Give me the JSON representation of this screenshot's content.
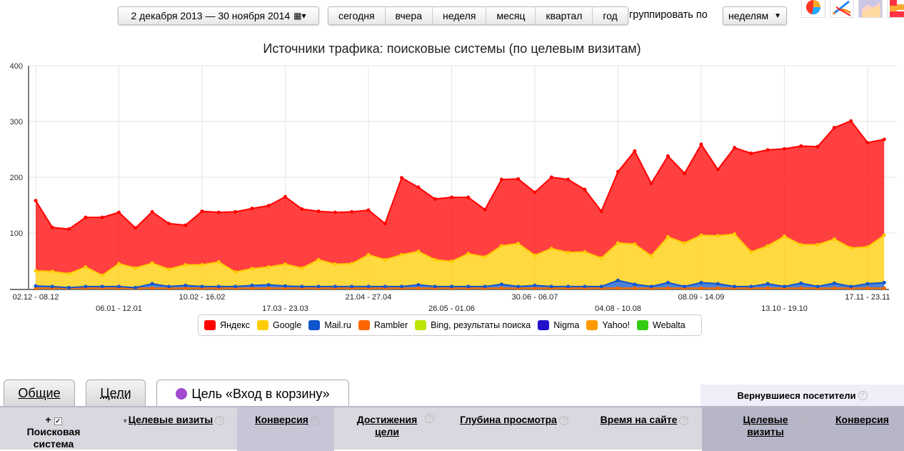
{
  "toolbar": {
    "date_range": "2 декабря 2013 — 30 ноября 2014",
    "periods": [
      "сегодня",
      "вчера",
      "неделя",
      "месяц",
      "квартал",
      "год"
    ],
    "group_label": "группировать по",
    "group_value": "неделям",
    "chart_types": [
      "pie-chart-icon",
      "line-chart-icon",
      "area-chart-icon",
      "bar-chart-icon"
    ],
    "selected_chart_type": "area-chart-icon"
  },
  "chart_data": {
    "type": "area",
    "stacked": true,
    "title": "Источники трафика: поисковые системы (по целевым визитам)",
    "ylim": [
      0,
      400
    ],
    "yticks": [
      100,
      200,
      300,
      400
    ],
    "grid": true,
    "legend": "bottom",
    "x_tick_labels": [
      "02.12 - 08.12",
      "06.01 - 12.01",
      "10.02 - 16.02",
      "17.03 - 23.03",
      "21.04 - 27.04",
      "26.05 - 01.06",
      "30.06 - 06.07",
      "04.08 - 10.08",
      "08.09 - 14.09",
      "13.10 - 19.10",
      "17.11 - 23.11"
    ],
    "x_tick_every_weeks": 5,
    "series": [
      {
        "name": "Яндекс",
        "color": "#ff0000",
        "values": [
          126,
          79,
          80,
          89,
          104,
          92,
          72,
          92,
          82,
          71,
          96,
          89,
          108,
          108,
          110,
          121,
          106,
          87,
          93,
          93,
          80,
          65,
          138,
          115,
          109,
          115,
          101,
          85,
          119,
          116,
          113,
          128,
          131,
          112,
          84,
          128,
          167,
          130,
          145,
          125,
          163,
          119,
          155,
          177,
          172,
          157,
          177,
          176,
          200,
          228,
          187,
          172
        ]
      },
      {
        "name": "Google",
        "color": "#ffcc00",
        "values": [
          27,
          27,
          25,
          35,
          20,
          41,
          35,
          37,
          31,
          37,
          39,
          44,
          26,
          30,
          32,
          39,
          33,
          48,
          40,
          41,
          57,
          48,
          57,
          60,
          48,
          45,
          59,
          53,
          69,
          77,
          54,
          68,
          61,
          62,
          51,
          67,
          72,
          55,
          82,
          78,
          85,
          86,
          94,
          62,
          68,
          90,
          69,
          75,
          79,
          69,
          66,
          85
        ]
      },
      {
        "name": "Mail.ru",
        "color": "#1155cc",
        "values": [
          4,
          3,
          1,
          3,
          3,
          3,
          1,
          8,
          3,
          5,
          3,
          3,
          3,
          5,
          6,
          4,
          3,
          3,
          3,
          3,
          3,
          3,
          3,
          6,
          3,
          3,
          3,
          3,
          7,
          3,
          5,
          3,
          3,
          3,
          3,
          14,
          7,
          3,
          10,
          3,
          10,
          8,
          3,
          3,
          8,
          3,
          9,
          3,
          9,
          3,
          8,
          10
        ]
      },
      {
        "name": "Rambler",
        "color": "#ff6600",
        "values": [
          0,
          0,
          0,
          0,
          0,
          0,
          0,
          0,
          0,
          0,
          0,
          0,
          0,
          0,
          0,
          0,
          0,
          0,
          0,
          0,
          0,
          0,
          0,
          0,
          0,
          0,
          0,
          0,
          0,
          0,
          0,
          0,
          0,
          0,
          0,
          0,
          0,
          0,
          0,
          0,
          0,
          0,
          0,
          0,
          0,
          0,
          0,
          0,
          0,
          0,
          0,
          0
        ]
      },
      {
        "name": "Bing, результаты поиска",
        "color": "#bbe600",
        "values": [
          0,
          0,
          0,
          0,
          0,
          0,
          0,
          0,
          0,
          0,
          0,
          0,
          0,
          0,
          0,
          0,
          0,
          0,
          0,
          0,
          0,
          0,
          0,
          0,
          0,
          0,
          0,
          0,
          0,
          0,
          0,
          0,
          0,
          0,
          0,
          0,
          0,
          0,
          0,
          0,
          0,
          0,
          0,
          0,
          0,
          0,
          0,
          0,
          0,
          0,
          0,
          0
        ]
      },
      {
        "name": "Nigma",
        "color": "#2211cc",
        "values": [
          0,
          0,
          0,
          0,
          0,
          0,
          0,
          0,
          0,
          0,
          0,
          0,
          0,
          0,
          0,
          0,
          0,
          0,
          0,
          0,
          0,
          0,
          0,
          0,
          0,
          0,
          0,
          0,
          0,
          0,
          0,
          0,
          0,
          0,
          0,
          0,
          0,
          0,
          0,
          0,
          0,
          0,
          0,
          0,
          0,
          0,
          0,
          0,
          0,
          0,
          0,
          0
        ]
      },
      {
        "name": "Yahoo!",
        "color": "#ff9900",
        "values": [
          0,
          0,
          0,
          0,
          0,
          0,
          0,
          0,
          0,
          0,
          0,
          0,
          0,
          0,
          0,
          0,
          0,
          0,
          0,
          0,
          0,
          0,
          0,
          0,
          0,
          0,
          0,
          0,
          0,
          0,
          0,
          0,
          0,
          0,
          0,
          0,
          0,
          0,
          0,
          0,
          0,
          0,
          0,
          0,
          0,
          0,
          0,
          0,
          0,
          0,
          0,
          0
        ]
      },
      {
        "name": "Webalta",
        "color": "#33cc11",
        "values": [
          1,
          1,
          1,
          1,
          1,
          1,
          1,
          1,
          1,
          1,
          1,
          1,
          1,
          1,
          1,
          1,
          1,
          1,
          1,
          1,
          1,
          1,
          1,
          1,
          1,
          1,
          1,
          1,
          1,
          1,
          1,
          1,
          1,
          1,
          1,
          1,
          1,
          1,
          1,
          1,
          1,
          1,
          1,
          1,
          1,
          1,
          1,
          1,
          1,
          1,
          1,
          1
        ]
      }
    ]
  },
  "tabs": [
    {
      "label": "Общие"
    },
    {
      "label": "Цели"
    },
    {
      "label": "Цель «Вход в корзину»",
      "active": true
    }
  ],
  "table": {
    "group_header": "Вернувшиеся посетители",
    "plus": "+",
    "dimension": "Поисковая система",
    "columns": [
      "Целевые визиты",
      "Конверсия",
      "Достижения цели",
      "Глубина просмотра",
      "Время на сайте",
      "Целевые визиты",
      "Конверсия"
    ],
    "help": "?"
  }
}
